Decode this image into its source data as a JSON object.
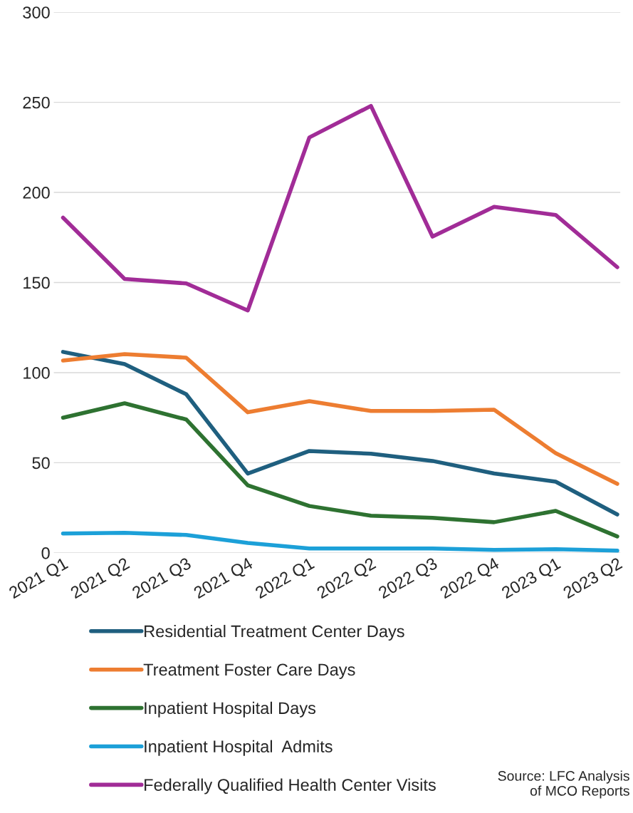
{
  "chart_data": {
    "type": "line",
    "categories": [
      "2021 Q1",
      "2021 Q2",
      "2021 Q3",
      "2021 Q4",
      "2022 Q1",
      "2022 Q2",
      "2022 Q3",
      "2022 Q4",
      "2023 Q1",
      "2023 Q2"
    ],
    "series": [
      {
        "name": "Residential Treatment Center Days",
        "color": "#1f5f7f",
        "values": [
          111.5,
          104.7,
          88,
          44,
          56.5,
          55,
          51,
          44,
          39.5,
          21.3
        ]
      },
      {
        "name": "Treatment Foster Care Days",
        "color": "#ed7d31",
        "values": [
          106.7,
          110.3,
          108.3,
          78,
          84.2,
          78.7,
          78.7,
          79.4,
          55.3,
          38.3
        ]
      },
      {
        "name": "Inpatient Hospital Days",
        "color": "#2e7231",
        "values": [
          75,
          83,
          74,
          37.5,
          26,
          20.6,
          19.4,
          17,
          23.3,
          9.1
        ]
      },
      {
        "name": "Inpatient Hospital  Admits",
        "color": "#1ca0d8",
        "values": [
          10.7,
          11.1,
          9.9,
          5.5,
          2.4,
          2.4,
          2.4,
          1.6,
          2,
          1.2
        ]
      },
      {
        "name": "Federally Qualified Health Center Visits",
        "color": "#a12c97",
        "values": [
          186,
          152,
          149.5,
          134.5,
          230.5,
          248,
          175.5,
          192,
          187.5,
          158.5
        ]
      }
    ],
    "ylim": [
      0,
      300
    ],
    "yticks": [
      0,
      50,
      100,
      150,
      200,
      250,
      300
    ],
    "grid": "y",
    "legend": "bottom",
    "marker": "none",
    "line_style": "solid",
    "annotations": [
      "Source: LFC Analysis\nof MCO Reports"
    ]
  }
}
